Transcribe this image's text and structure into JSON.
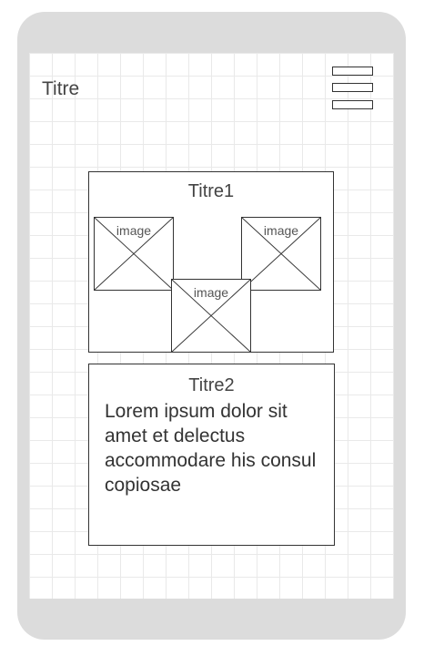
{
  "header": {
    "title": "Titre",
    "menu_icon": "hamburger-menu-icon"
  },
  "gallery_card": {
    "title": "Titre1",
    "images": [
      {
        "label": "image"
      },
      {
        "label": "image"
      },
      {
        "label": "image"
      }
    ]
  },
  "text_card": {
    "title": "Titre2",
    "body": "Lorem ipsum dolor sit amet et delectus accommodare his consul copiosae"
  },
  "colors": {
    "device_frame": "#dcdcdc",
    "grid_line": "#e9e9e9",
    "stroke": "#333333"
  }
}
